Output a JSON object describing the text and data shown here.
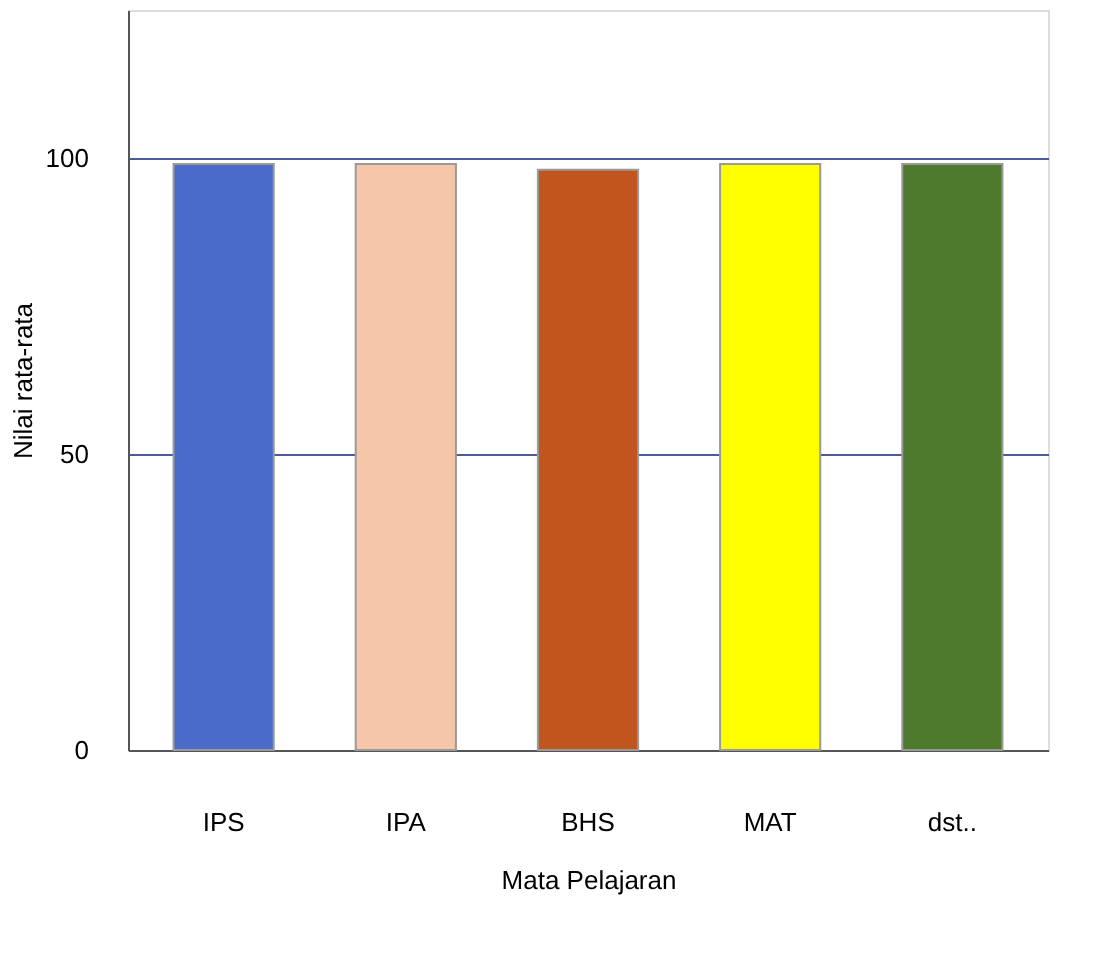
{
  "chart_data": {
    "type": "bar",
    "xlabel": "Mata Pelajaran",
    "ylabel": "Nilai rata-rata",
    "categories": [
      "IPS",
      "IPA",
      "BHS",
      "MAT",
      "dst.."
    ],
    "values": [
      99,
      99,
      98,
      99,
      99
    ],
    "colors": [
      "#4a6bc8",
      "#f5c6a8",
      "#c0561e",
      "#ffff00",
      "#4e7a2e"
    ],
    "ylim": [
      0,
      125
    ],
    "yticks": [
      0,
      50,
      100
    ],
    "grid": "y"
  }
}
